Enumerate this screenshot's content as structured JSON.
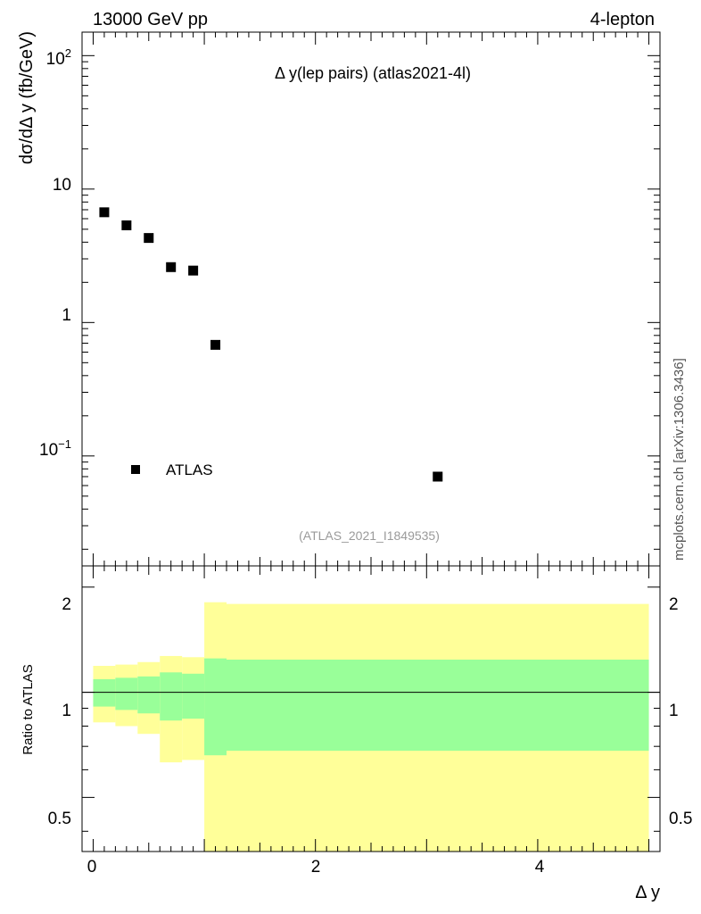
{
  "header": {
    "left": "13000 GeV pp",
    "right": "4-lepton"
  },
  "side_label": "mcplots.cern.ch [arXiv:1306.3436]",
  "chart_data": [
    {
      "type": "scatter",
      "title": "Δ y(lep pairs) (atlas2021-4l)",
      "ylabel": "dσ/dΔ y (fb/GeV)",
      "yscale": "log",
      "ylim": [
        0.015,
        150
      ],
      "xlim": [
        -0.1,
        5.1
      ],
      "y_tick_labels": [
        "10",
        "1"
      ],
      "y_tick_exp_labels": [
        {
          "base": "10",
          "exp": "2"
        },
        {
          "base": "10",
          "exp": "−1"
        }
      ],
      "legend": "ATLAS",
      "analysis_id": "(ATLAS_2021_I1849535)",
      "series": [
        {
          "name": "ATLAS",
          "x": [
            0.1,
            0.3,
            0.5,
            0.7,
            0.9,
            1.1,
            3.1
          ],
          "y": [
            6.7,
            5.35,
            4.3,
            2.6,
            2.45,
            0.68,
            0.07
          ]
        }
      ]
    },
    {
      "type": "area",
      "ylabel": "Ratio to ATLAS",
      "xlabel": "Δ y",
      "ylim": [
        0.35,
        2.3
      ],
      "xlim": [
        -0.1,
        5.1
      ],
      "x_tick_labels": [
        "0",
        "2",
        "4"
      ],
      "y_tick_labels": [
        "0.5",
        "1",
        "2"
      ],
      "reference_line": 1,
      "bins": [
        0,
        0.2,
        0.4,
        0.6,
        0.8,
        1.0,
        1.2,
        5.0
      ],
      "band_inner": {
        "lo": [
          0.91,
          0.89,
          0.87,
          0.83,
          0.84,
          0.66,
          0.68
        ],
        "hi": [
          1.09,
          1.1,
          1.11,
          1.14,
          1.13,
          1.25,
          1.24
        ]
      },
      "band_outer": {
        "lo": [
          0.82,
          0.8,
          0.76,
          0.63,
          0.64,
          0.33,
          0.33
        ],
        "hi": [
          1.19,
          1.2,
          1.22,
          1.27,
          1.26,
          1.81,
          1.79
        ]
      },
      "colors": {
        "inner": "#99ff99",
        "outer": "#ffff99"
      }
    }
  ]
}
